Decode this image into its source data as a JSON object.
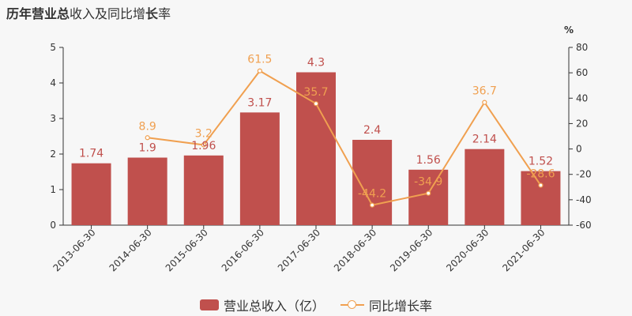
{
  "title": {
    "part1": "历年",
    "part2": "营业总",
    "part3": "收入及同比增",
    "part4": "长",
    "part5": "率"
  },
  "colors": {
    "bar": "#c0504d",
    "line": "#f0a050",
    "axis": "#333333",
    "bar_label": "#c0504d",
    "line_label": "#f0a050"
  },
  "chart_data": {
    "type": "bar",
    "categories": [
      "2013-06-30",
      "2014-06-30",
      "2015-06-30",
      "2016-06-30",
      "2017-06-30",
      "2018-06-30",
      "2019-06-30",
      "2020-06-30",
      "2021-06-30"
    ],
    "series": [
      {
        "name": "营业总收入（亿）",
        "type": "bar",
        "axis": "left",
        "values": [
          1.74,
          1.9,
          1.96,
          3.17,
          4.3,
          2.4,
          1.56,
          2.14,
          1.52
        ],
        "labels": [
          "1.74",
          "1.9",
          "1.96",
          "3.17",
          "4.3",
          "2.4",
          "1.56",
          "2.14",
          "1.52"
        ]
      },
      {
        "name": "同比增长率",
        "type": "line",
        "axis": "right",
        "values": [
          null,
          8.9,
          3.2,
          61.5,
          35.7,
          -44.2,
          -34.9,
          36.7,
          -28.6
        ],
        "labels": [
          "",
          "8.9",
          "3.2",
          "61.5",
          "35.7",
          "-44.2",
          "-34.9",
          "36.7",
          "-28.6"
        ]
      }
    ],
    "ylim_left": [
      0,
      5
    ],
    "yticks_left": [
      "0",
      "1",
      "2",
      "3",
      "4",
      "5"
    ],
    "ylim_right": [
      -60,
      80
    ],
    "yticks_right": [
      "-60",
      "-40",
      "-20",
      "0",
      "20",
      "40",
      "60",
      "80"
    ],
    "ylabel_right": "%",
    "grid": false,
    "legend_position": "bottom"
  }
}
